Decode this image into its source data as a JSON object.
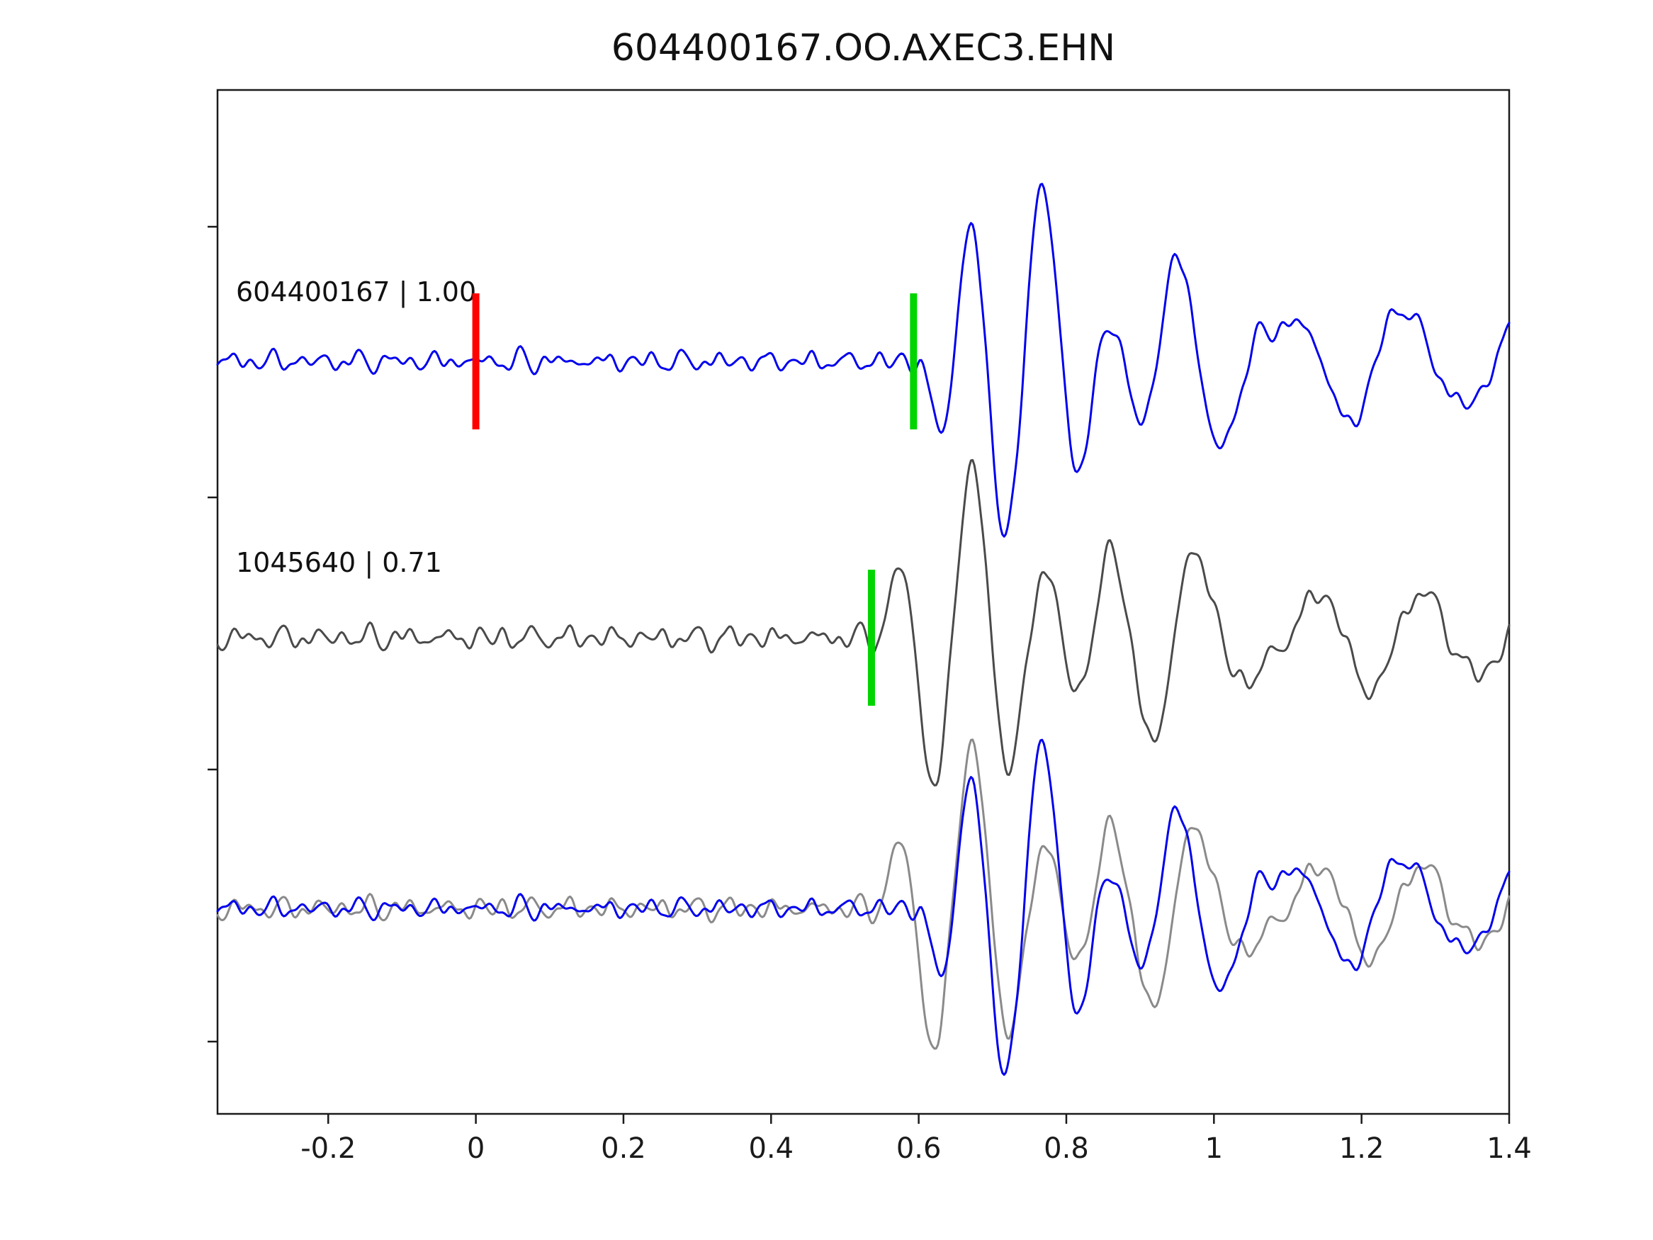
{
  "chart_data": {
    "type": "line",
    "title": "604400167.OO.AXEC3.EHN",
    "xlabel": "",
    "ylabel": "",
    "grid": false,
    "legend_position": "none",
    "x_range": [
      -0.35,
      1.4
    ],
    "x_ticks": [
      -0.2,
      0,
      0.2,
      0.4,
      0.6,
      0.8,
      1,
      1.2,
      1.4
    ],
    "x_tick_labels": [
      "-0.2",
      "0",
      "0.2",
      "0.4",
      "0.6",
      "0.8",
      "1",
      "1.2",
      "1.4"
    ],
    "traces": [
      {
        "id": "604400167",
        "label": "604400167 | 1.00",
        "correlation": 1.0,
        "color": "#0000ee",
        "row": 0,
        "picks": [
          {
            "x": 0.0,
            "color": "#ff0000",
            "kind": "reference-pick"
          },
          {
            "x": 0.593,
            "color": "#00d500",
            "kind": "cross-correlation-pick"
          }
        ],
        "synth": {
          "seed": 3.1,
          "noise_amp": 14,
          "onset": 0.6,
          "a1": -215,
          "t1": 0.095,
          "tau1": 0.11,
          "a2": 80,
          "t2": 0.16,
          "tau2": 0.42,
          "ph2": 0.8
        }
      },
      {
        "id": "1045640",
        "label": "1045640 | 0.71",
        "correlation": 0.71,
        "color": "#4a4a4a",
        "row": 1,
        "picks": [
          {
            "x": 0.536,
            "color": "#00d500",
            "kind": "cross-correlation-pick"
          }
        ],
        "synth": {
          "seed": 7.7,
          "noise_amp": 16,
          "onset": 0.545,
          "a1": 200,
          "t1": 0.1,
          "tau1": 0.12,
          "a2": 75,
          "t2": 0.15,
          "tau2": 0.4,
          "ph2": 2.0
        }
      }
    ],
    "overlay": {
      "row": 2,
      "scale": 0.95,
      "description": "both traces superimposed",
      "colors": [
        "#8a8a8a",
        "#0000ee"
      ]
    }
  }
}
